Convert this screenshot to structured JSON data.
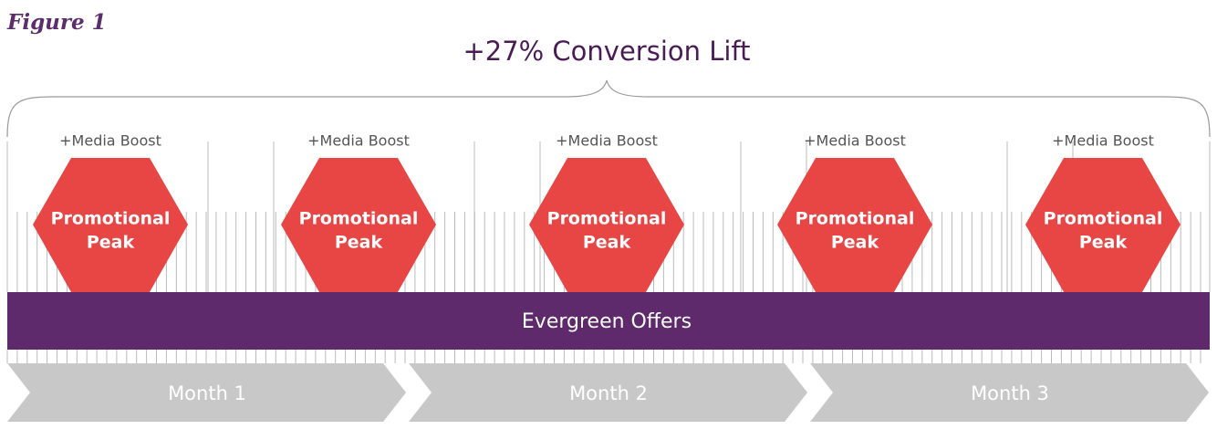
{
  "figure_label": "Figure 1",
  "headline": "+27% Conversion Lift",
  "peaks": [
    {
      "boost": "+Media Boost",
      "label": [
        "Promotional",
        "Peak"
      ]
    },
    {
      "boost": "+Media Boost",
      "label": [
        "Promotional",
        "Peak"
      ]
    },
    {
      "boost": "+Media Boost",
      "label": [
        "Promotional",
        "Peak"
      ]
    },
    {
      "boost": "+Media Boost",
      "label": [
        "Promotional",
        "Peak"
      ]
    },
    {
      "boost": "+Media Boost",
      "label": [
        "Promotional",
        "Peak"
      ]
    }
  ],
  "band": "Evergreen Offers",
  "months": [
    "Month 1",
    "Month 2",
    "Month 3"
  ]
}
